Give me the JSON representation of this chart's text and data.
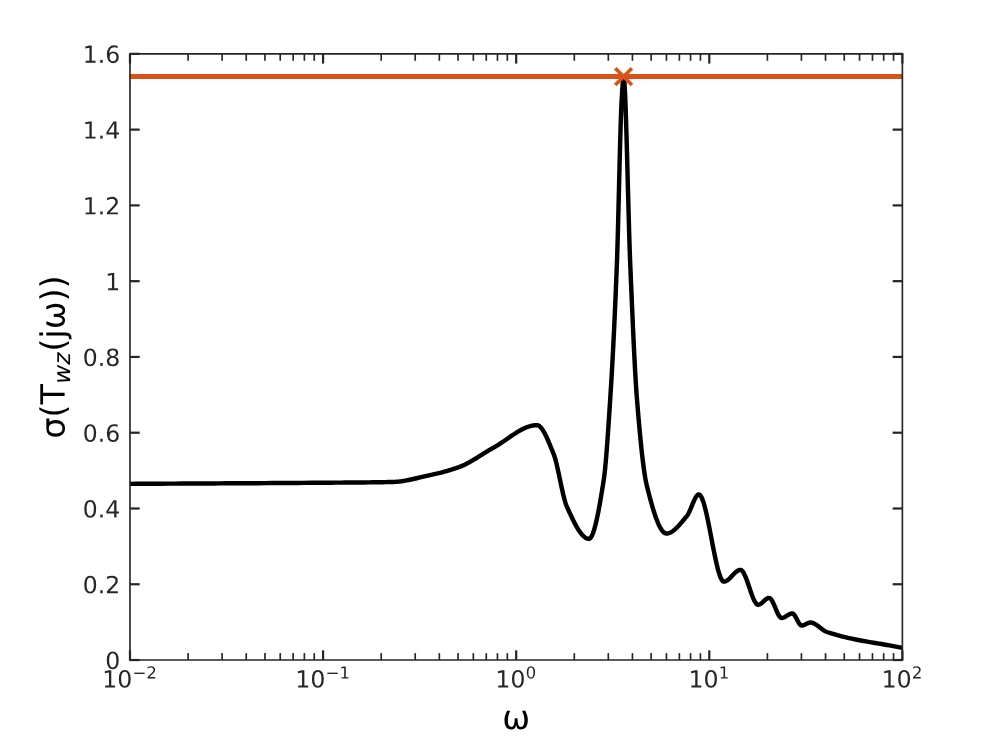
{
  "chart_data": {
    "type": "line",
    "xlabel": "ω",
    "ylabel": "σ(T$_{wz}$(jω))",
    "log": "x",
    "xlim": [
      0.01,
      100
    ],
    "xticks": [
      {
        "value": 0.01,
        "label": "10$^{−2}$"
      },
      {
        "value": 0.1,
        "label": "10$^{−1}$"
      },
      {
        "value": 1,
        "label": "10$^{0}$"
      },
      {
        "value": 10,
        "label": "10$^{1}$"
      },
      {
        "value": 100,
        "label": "10$^{2}$"
      }
    ],
    "ylim": [
      0,
      1.6
    ],
    "yticks": [
      0,
      0.2,
      0.4,
      0.6,
      0.8,
      1,
      1.2,
      1.4,
      1.6
    ],
    "grid": false,
    "series": [
      {
        "color": "#000000",
        "marker": "none",
        "line_style": "solid",
        "x": [
          0.01,
          0.1,
          0.23,
          0.344,
          0.51,
          0.76,
          1.28,
          1.56,
          1.83,
          2.38,
          2.84,
          3.07,
          3.32,
          3.52,
          3.6,
          3.9,
          4.22,
          4.75,
          6.0,
          7.65,
          8.83,
          11.9,
          14.5,
          17.9,
          20.4,
          23.7,
          26.9,
          30.1,
          33.4,
          40.7,
          100
        ],
        "values": [
          0.465,
          0.468,
          0.47,
          0.486,
          0.51,
          0.56,
          0.62,
          0.545,
          0.405,
          0.32,
          0.475,
          0.69,
          1.04,
          1.48,
          1.54,
          1.04,
          0.69,
          0.46,
          0.334,
          0.38,
          0.437,
          0.207,
          0.238,
          0.146,
          0.164,
          0.111,
          0.123,
          0.091,
          0.099,
          0.074,
          0.032
        ]
      },
      {
        "type": "scatter",
        "color": "#d95319",
        "marker": "cross",
        "x": [
          3.6
        ],
        "values": [
          1.54
        ]
      }
    ],
    "ref_lines": [
      {
        "axis": "y",
        "value": 1.54,
        "color": "#d95319",
        "line_style": "solid"
      }
    ]
  }
}
